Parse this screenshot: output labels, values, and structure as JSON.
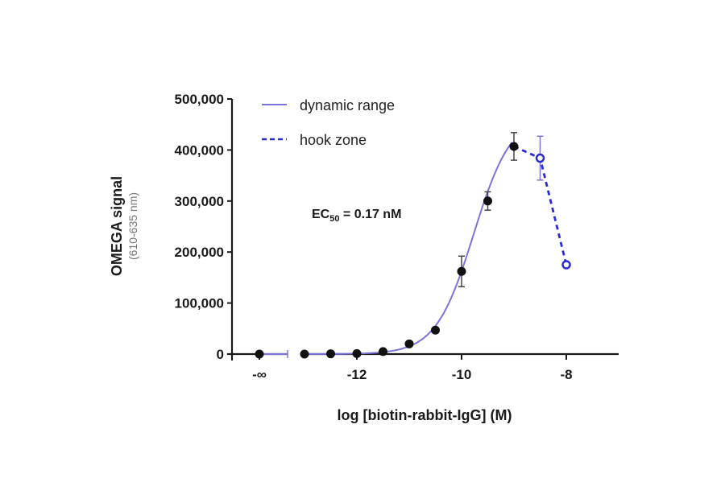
{
  "chart_data": {
    "type": "line",
    "title": "",
    "xlabel": "log [biotin-rabbit-IgG] (M)",
    "ylabel": "OMEGA signal",
    "ylabel_sub": "(610-635 nm)",
    "ylim": [
      0,
      500000
    ],
    "y_ticks": [
      0,
      100000,
      200000,
      300000,
      400000,
      500000
    ],
    "y_tick_labels": [
      "0",
      "100,000",
      "200,000",
      "300,000",
      "400,000",
      "500,000"
    ],
    "x_ticks": [
      "-∞",
      -12,
      -10,
      -8
    ],
    "x_tick_labels": [
      "-∞",
      "-12",
      "-10",
      "-8"
    ],
    "xlim": [
      -13.2,
      -7.0
    ],
    "grid": false,
    "legend_position": "top-left inside",
    "annotation": {
      "prefix": "EC",
      "subscript": "50",
      "suffix": " = 0.17 nM"
    },
    "series": [
      {
        "name": "dynamic range",
        "style": "solid",
        "line_color": "#7b74d9",
        "marker": "filled-circle",
        "marker_color": "#111111",
        "points": [
          {
            "x": "-∞",
            "y": 0,
            "err": 0
          },
          {
            "x": -13.0,
            "y": 0,
            "err": 0
          },
          {
            "x": -12.5,
            "y": 500,
            "err": 0
          },
          {
            "x": -12.0,
            "y": 1000,
            "err": 1500
          },
          {
            "x": -11.5,
            "y": 5000,
            "err": 2000
          },
          {
            "x": -11.0,
            "y": 20000,
            "err": 2000
          },
          {
            "x": -10.5,
            "y": 47000,
            "err": 2000
          },
          {
            "x": -10.0,
            "y": 162000,
            "err": 30000
          },
          {
            "x": -9.5,
            "y": 300000,
            "err": 18000
          },
          {
            "x": -9.0,
            "y": 407000,
            "err": 27000
          }
        ]
      },
      {
        "name": "hook zone",
        "style": "dashed",
        "line_color": "#2b2bd6",
        "marker": "open-circle",
        "marker_color": "#2b2bd6",
        "points": [
          {
            "x": -9.0,
            "y": 407000,
            "err": 0
          },
          {
            "x": -8.5,
            "y": 384000,
            "err": 43000
          },
          {
            "x": -8.0,
            "y": 175000,
            "err": 0
          }
        ]
      }
    ]
  },
  "legend": {
    "items": [
      {
        "label": "dynamic range",
        "style": "solid",
        "color": "#7b74d9"
      },
      {
        "label": "hook zone",
        "style": "dashed",
        "color": "#2b2bd6"
      }
    ]
  },
  "colors": {
    "axis": "#1a1a1a",
    "fit_line": "#7b74d9",
    "hook_line": "#2b2bd6",
    "marker": "#111111",
    "errorbar_dark": "#444444",
    "errorbar_hook": "#7b74d9"
  }
}
